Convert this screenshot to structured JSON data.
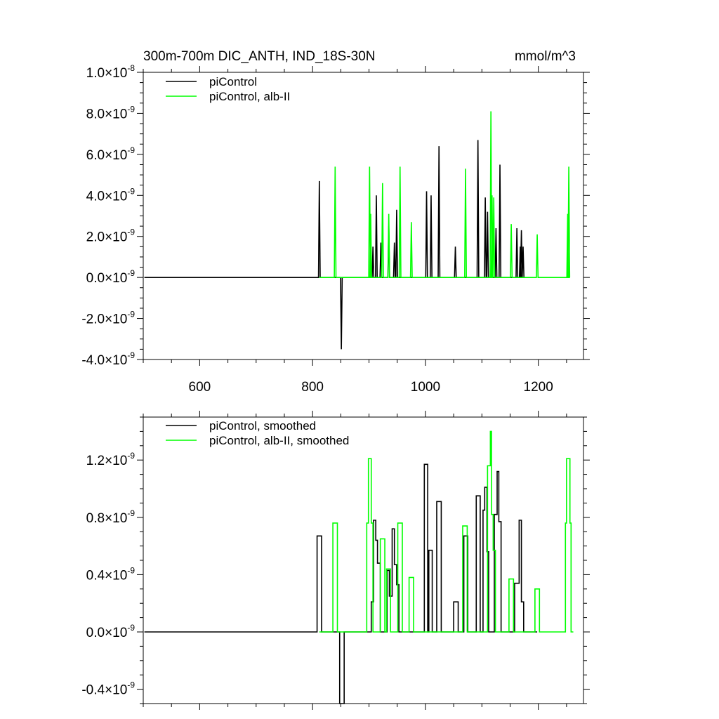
{
  "chart_data": [
    {
      "type": "line",
      "title": "300m-700m DIC_ANTH, IND_18S-30N",
      "units": "mmol/m^3",
      "xlim": [
        500,
        1280
      ],
      "ylim": [
        -4e-09,
        1e-08
      ],
      "x_ticks": [
        600,
        800,
        1000,
        1200
      ],
      "x_tick_labels": [
        "600",
        "800",
        "1000",
        "1200"
      ],
      "y_ticks": [
        {
          "value": 1e-08,
          "mantissa": "1.0",
          "exponent": "-8"
        },
        {
          "value": 8e-09,
          "mantissa": "8.0",
          "exponent": "-9"
        },
        {
          "value": 6e-09,
          "mantissa": "6.0",
          "exponent": "-9"
        },
        {
          "value": 4e-09,
          "mantissa": "4.0",
          "exponent": "-9"
        },
        {
          "value": 2e-09,
          "mantissa": "2.0",
          "exponent": "-9"
        },
        {
          "value": 0.0,
          "mantissa": "0.0",
          "exponent": "-9"
        },
        {
          "value": -2e-09,
          "mantissa": "-2.0",
          "exponent": "-9"
        },
        {
          "value": -4e-09,
          "mantissa": "-4.0",
          "exponent": "-9"
        }
      ],
      "times_symbol": "×10",
      "legend_position": "top-left",
      "series": [
        {
          "name": "piControl",
          "color": "#000000",
          "x_start": 502,
          "x_end": 1175,
          "baseline": 0,
          "spikes": [
            {
              "x": 812,
              "y": 4.7e-09
            },
            {
              "x": 851,
              "y": -3.5e-09
            },
            {
              "x": 907,
              "y": 1.5e-09
            },
            {
              "x": 913,
              "y": 4e-09
            },
            {
              "x": 921,
              "y": 1.7e-09
            },
            {
              "x": 935,
              "y": 2.5e-09
            },
            {
              "x": 945,
              "y": 1.7e-09
            },
            {
              "x": 949,
              "y": 3.3e-09
            },
            {
              "x": 1002,
              "y": 4.2e-09
            },
            {
              "x": 1010,
              "y": 4e-09
            },
            {
              "x": 1024,
              "y": 6.4e-09
            },
            {
              "x": 1053,
              "y": 1.5e-09
            },
            {
              "x": 1093,
              "y": 6.7e-09
            },
            {
              "x": 1106,
              "y": 3.9e-09
            },
            {
              "x": 1110,
              "y": 3.2e-09
            },
            {
              "x": 1125,
              "y": 2.4e-09
            },
            {
              "x": 1132,
              "y": 5.5e-09
            },
            {
              "x": 1162,
              "y": 2.4e-09
            },
            {
              "x": 1168,
              "y": 1.5e-09
            },
            {
              "x": 1170,
              "y": 2.3e-09
            },
            {
              "x": 1173,
              "y": 1.5e-09
            }
          ]
        },
        {
          "name": "piControl, alb-II",
          "color": "#00ff00",
          "x_start": 812,
          "x_end": 1256,
          "baseline": 0,
          "spikes": [
            {
              "x": 840,
              "y": 5.4e-09
            },
            {
              "x": 901,
              "y": 5.4e-09
            },
            {
              "x": 903,
              "y": 3.1e-09
            },
            {
              "x": 924,
              "y": 4.6e-09
            },
            {
              "x": 935,
              "y": 3.1e-09
            },
            {
              "x": 955,
              "y": 5.4e-09
            },
            {
              "x": 975,
              "y": 2.7e-09
            },
            {
              "x": 1071,
              "y": 5.3e-09
            },
            {
              "x": 1116,
              "y": 8.1e-09
            },
            {
              "x": 1118,
              "y": 4e-09
            },
            {
              "x": 1121,
              "y": 3.9e-09
            },
            {
              "x": 1152,
              "y": 2.6e-09
            },
            {
              "x": 1198,
              "y": 2.1e-09
            },
            {
              "x": 1252,
              "y": 3.1e-09
            },
            {
              "x": 1254,
              "y": 5.4e-09
            }
          ]
        }
      ]
    },
    {
      "type": "line",
      "xlim": [
        500,
        1280
      ],
      "ylim": [
        -5e-10,
        1.5e-09
      ],
      "x_ticks": [
        600,
        800,
        1000,
        1200
      ],
      "y_ticks": [
        {
          "value": 1.2e-09,
          "mantissa": "1.2",
          "exponent": "-9"
        },
        {
          "value": 8e-10,
          "mantissa": "0.8",
          "exponent": "-9"
        },
        {
          "value": 4e-10,
          "mantissa": "0.4",
          "exponent": "-9"
        },
        {
          "value": 0.0,
          "mantissa": "0.0",
          "exponent": "-9"
        },
        {
          "value": -4e-10,
          "mantissa": "-0.4",
          "exponent": "-9"
        }
      ],
      "times_symbol": "×10",
      "legend_position": "top-left",
      "series": [
        {
          "name": "piControl, smoothed",
          "color": "#000000",
          "points": [
            [
              502,
              0
            ],
            [
              808,
              0
            ],
            [
              808,
              6.7e-10
            ],
            [
              816,
              6.7e-10
            ],
            [
              816,
              0
            ],
            [
              848,
              0
            ],
            [
              848,
              -5e-10
            ],
            [
              856,
              -5e-10
            ],
            [
              856,
              0
            ],
            [
              904,
              0
            ],
            [
              904,
              2.1e-10
            ],
            [
              908,
              2.1e-10
            ],
            [
              908,
              7.8e-10
            ],
            [
              912,
              7.8e-10
            ],
            [
              912,
              6.4e-10
            ],
            [
              915,
              6.4e-10
            ],
            [
              915,
              4.8e-10
            ],
            [
              920,
              4.8e-10
            ],
            [
              920,
              0
            ],
            [
              932,
              0
            ],
            [
              932,
              4.3e-10
            ],
            [
              936,
              4.3e-10
            ],
            [
              936,
              2.5e-10
            ],
            [
              941,
              2.5e-10
            ],
            [
              941,
              7.2e-10
            ],
            [
              945,
              7.2e-10
            ],
            [
              945,
              4.7e-10
            ],
            [
              949,
              4.7e-10
            ],
            [
              949,
              3.3e-10
            ],
            [
              953,
              3.3e-10
            ],
            [
              953,
              0
            ],
            [
              998,
              0
            ],
            [
              998,
              1.17e-09
            ],
            [
              1004,
              1.17e-09
            ],
            [
              1004,
              0
            ],
            [
              1006,
              0
            ],
            [
              1006,
              5.7e-10
            ],
            [
              1012,
              5.7e-10
            ],
            [
              1012,
              0
            ],
            [
              1020,
              0
            ],
            [
              1020,
              9.1e-10
            ],
            [
              1028,
              9.1e-10
            ],
            [
              1028,
              0
            ],
            [
              1050,
              0
            ],
            [
              1050,
              2.1e-10
            ],
            [
              1058,
              2.1e-10
            ],
            [
              1058,
              0
            ],
            [
              1068,
              0
            ],
            [
              1068,
              6.7e-10
            ],
            [
              1075,
              6.7e-10
            ],
            [
              1075,
              0
            ],
            [
              1090,
              0
            ],
            [
              1090,
              9.5e-10
            ],
            [
              1097,
              9.5e-10
            ],
            [
              1097,
              0
            ],
            [
              1102,
              0
            ],
            [
              1102,
              8.5e-10
            ],
            [
              1105,
              8.5e-10
            ],
            [
              1105,
              1.01e-09
            ],
            [
              1109,
              1.01e-09
            ],
            [
              1109,
              5.6e-10
            ],
            [
              1112,
              5.6e-10
            ],
            [
              1112,
              0
            ],
            [
              1122,
              0
            ],
            [
              1122,
              8.2e-10
            ],
            [
              1127,
              8.2e-10
            ],
            [
              1127,
              1.12e-09
            ],
            [
              1130,
              1.12e-09
            ],
            [
              1130,
              7.7e-10
            ],
            [
              1134,
              7.7e-10
            ],
            [
              1134,
              0
            ],
            [
              1158,
              0
            ],
            [
              1158,
              3.4e-10
            ],
            [
              1166,
              3.4e-10
            ],
            [
              1166,
              7.8e-10
            ],
            [
              1170,
              7.8e-10
            ],
            [
              1170,
              2.1e-10
            ],
            [
              1174,
              2.1e-10
            ],
            [
              1174,
              0
            ],
            [
              1198,
              0
            ]
          ]
        },
        {
          "name": "piControl, alb-II, smoothed",
          "color": "#00ff00",
          "points": [
            [
              812,
              0
            ],
            [
              836,
              0
            ],
            [
              836,
              7.6e-10
            ],
            [
              844,
              7.6e-10
            ],
            [
              844,
              0
            ],
            [
              896,
              0
            ],
            [
              896,
              7.6e-10
            ],
            [
              899,
              7.6e-10
            ],
            [
              899,
              1.21e-09
            ],
            [
              904,
              1.21e-09
            ],
            [
              904,
              7.6e-10
            ],
            [
              907,
              7.6e-10
            ],
            [
              907,
              0
            ],
            [
              920,
              0
            ],
            [
              920,
              6.5e-10
            ],
            [
              928,
              6.5e-10
            ],
            [
              928,
              0
            ],
            [
              931,
              0
            ],
            [
              931,
              4.4e-10
            ],
            [
              938,
              4.4e-10
            ],
            [
              938,
              0
            ],
            [
              951,
              0
            ],
            [
              951,
              7.6e-10
            ],
            [
              959,
              7.6e-10
            ],
            [
              959,
              0
            ],
            [
              971,
              0
            ],
            [
              971,
              3.8e-10
            ],
            [
              979,
              3.8e-10
            ],
            [
              979,
              0
            ],
            [
              1066,
              0
            ],
            [
              1066,
              7.4e-10
            ],
            [
              1074,
              7.4e-10
            ],
            [
              1074,
              0
            ],
            [
              1110,
              0
            ],
            [
              1110,
              1.16e-09
            ],
            [
              1115,
              1.16e-09
            ],
            [
              1115,
              1.4e-09
            ],
            [
              1117,
              1.4e-09
            ],
            [
              1117,
              8.2e-10
            ],
            [
              1120,
              8.2e-10
            ],
            [
              1120,
              5.7e-10
            ],
            [
              1124,
              5.7e-10
            ],
            [
              1124,
              0
            ],
            [
              1148,
              0
            ],
            [
              1148,
              3.7e-10
            ],
            [
              1156,
              3.7e-10
            ],
            [
              1156,
              0
            ],
            [
              1194,
              0
            ],
            [
              1194,
              3e-10
            ],
            [
              1202,
              3e-10
            ],
            [
              1202,
              0
            ],
            [
              1248,
              0
            ],
            [
              1248,
              7.6e-10
            ],
            [
              1250,
              7.6e-10
            ],
            [
              1250,
              1.21e-09
            ],
            [
              1256,
              1.21e-09
            ],
            [
              1256,
              7.6e-10
            ],
            [
              1258,
              7.6e-10
            ],
            [
              1258,
              0
            ],
            [
              1262,
              0
            ]
          ]
        }
      ]
    }
  ]
}
